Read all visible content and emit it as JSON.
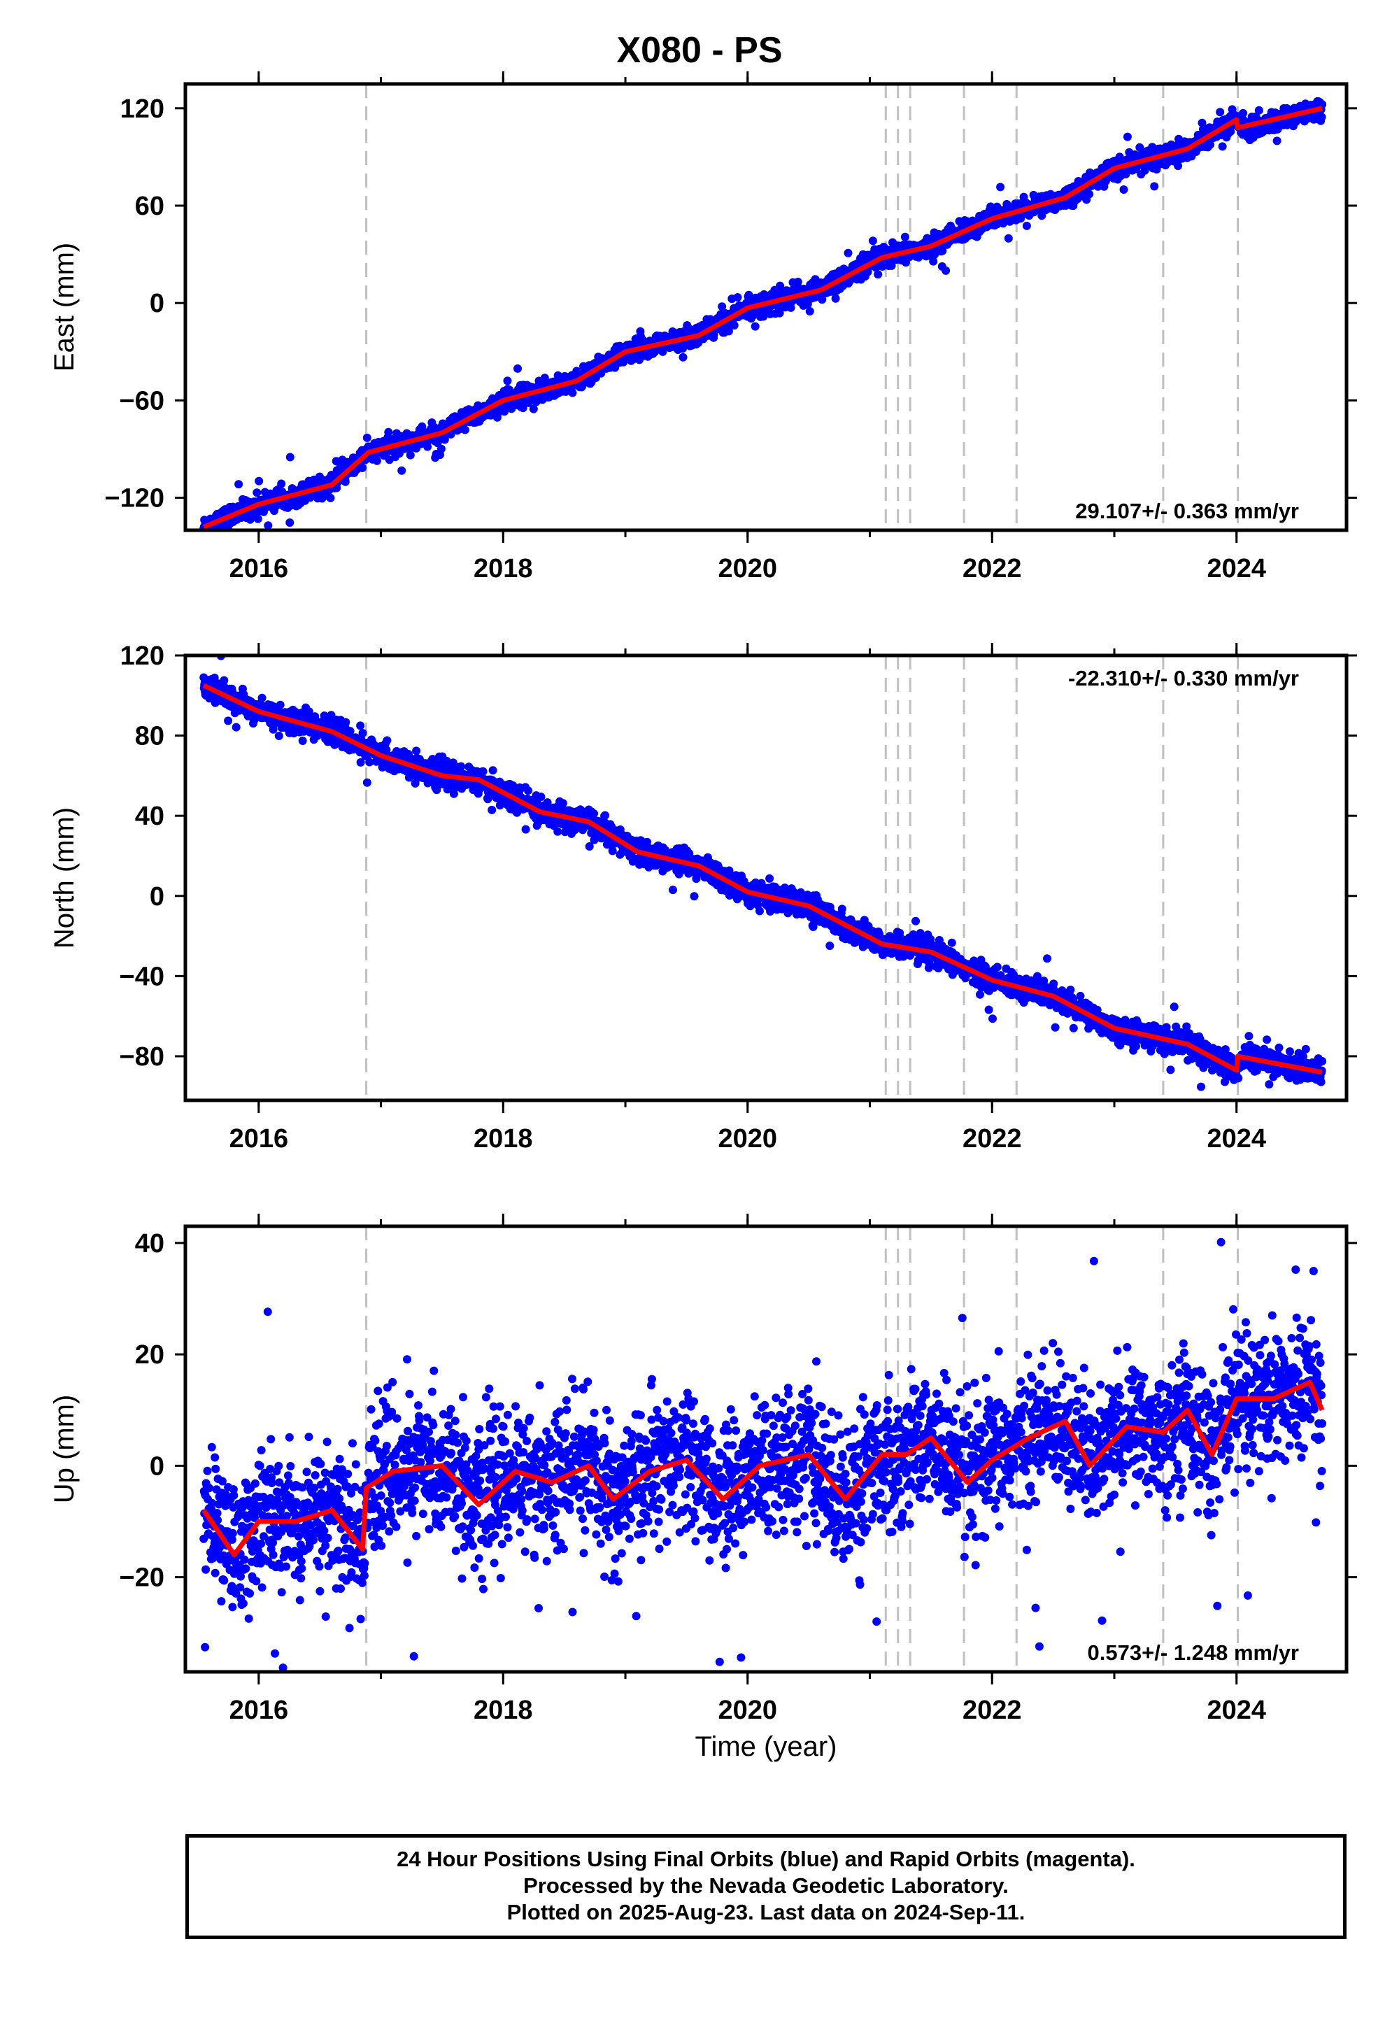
{
  "figure": {
    "title": "X080 - PS",
    "xlabel": "Time (year)",
    "footer": [
      "24 Hour Positions Using Final Orbits (blue) and Rapid Orbits (magenta).",
      "Processed by the Nevada Geodetic Laboratory.",
      "Plotted on 2025-Aug-23. Last data on 2024-Sep-11."
    ]
  },
  "colors": {
    "final_orbits": "#0000ff",
    "model_fit": "#ff0000",
    "event_lines": "#c0c0c0",
    "frame": "#000000"
  },
  "chart_data": [
    {
      "type": "scatter",
      "panel": "East",
      "ylabel": "East (mm)",
      "xlim": [
        2015.4,
        2024.9
      ],
      "ylim": [
        -140,
        135
      ],
      "yticks": [
        -120,
        -60,
        0,
        60,
        120
      ],
      "xticks": [
        2016,
        2018,
        2020,
        2022,
        2024
      ],
      "rate_label": "29.107+/- 0.363 mm/yr",
      "rate_label_position": "bottom-right",
      "series": [
        {
          "kind": "daily-positions",
          "color": "#0000ff",
          "x_range": [
            2015.55,
            2024.7
          ],
          "trend": [
            [
              2015.55,
              -138
            ],
            [
              2016.0,
              -124
            ],
            [
              2016.6,
              -112
            ],
            [
              2016.9,
              -92
            ],
            [
              2017.5,
              -80
            ],
            [
              2018.0,
              -60
            ],
            [
              2018.6,
              -48
            ],
            [
              2019.0,
              -30
            ],
            [
              2019.6,
              -20
            ],
            [
              2020.0,
              -3
            ],
            [
              2020.6,
              8
            ],
            [
              2021.1,
              28
            ],
            [
              2021.5,
              35
            ],
            [
              2022.0,
              52
            ],
            [
              2022.6,
              65
            ],
            [
              2023.0,
              83
            ],
            [
              2023.6,
              95
            ],
            [
              2024.0,
              113
            ],
            [
              2024.1,
              107
            ],
            [
              2024.7,
              120
            ]
          ],
          "scatter_mm": 3
        },
        {
          "kind": "model-fit",
          "color": "#ff0000",
          "points": [
            [
              2015.55,
              -138
            ],
            [
              2016.0,
              -124
            ],
            [
              2016.6,
              -112
            ],
            [
              2016.9,
              -92
            ],
            [
              2017.5,
              -80
            ],
            [
              2018.0,
              -60
            ],
            [
              2018.6,
              -48
            ],
            [
              2019.0,
              -30
            ],
            [
              2019.6,
              -20
            ],
            [
              2020.0,
              -3
            ],
            [
              2020.6,
              8
            ],
            [
              2021.1,
              28
            ],
            [
              2021.5,
              35
            ],
            [
              2022.0,
              52
            ],
            [
              2022.6,
              65
            ],
            [
              2023.0,
              83
            ],
            [
              2023.6,
              95
            ],
            [
              2024.0,
              113
            ],
            [
              2024.01,
              108
            ],
            [
              2024.7,
              120
            ]
          ]
        }
      ],
      "events": [
        2016.88,
        2021.13,
        2021.23,
        2021.33,
        2021.77,
        2022.2,
        2023.4,
        2024.01
      ]
    },
    {
      "type": "scatter",
      "panel": "North",
      "ylabel": "North (mm)",
      "xlim": [
        2015.4,
        2024.9
      ],
      "ylim": [
        -102,
        120
      ],
      "yticks": [
        -80,
        -40,
        0,
        40,
        80,
        120
      ],
      "xticks": [
        2016,
        2018,
        2020,
        2022,
        2024
      ],
      "rate_label": "-22.310+/- 0.330 mm/yr",
      "rate_label_position": "top-right",
      "series": [
        {
          "kind": "daily-positions",
          "color": "#0000ff",
          "x_range": [
            2015.55,
            2024.7
          ],
          "trend": [
            [
              2015.55,
              105
            ],
            [
              2016.0,
              92
            ],
            [
              2016.6,
              82
            ],
            [
              2017.0,
              70
            ],
            [
              2017.5,
              60
            ],
            [
              2017.8,
              58
            ],
            [
              2018.3,
              42
            ],
            [
              2018.7,
              37
            ],
            [
              2019.1,
              22
            ],
            [
              2019.6,
              15
            ],
            [
              2020.0,
              2
            ],
            [
              2020.5,
              -5
            ],
            [
              2021.1,
              -24
            ],
            [
              2021.5,
              -28
            ],
            [
              2022.0,
              -42
            ],
            [
              2022.5,
              -50
            ],
            [
              2023.0,
              -66
            ],
            [
              2023.6,
              -74
            ],
            [
              2024.0,
              -87
            ],
            [
              2024.05,
              -80
            ],
            [
              2024.7,
              -88
            ]
          ],
          "scatter_mm": 3
        },
        {
          "kind": "model-fit",
          "color": "#ff0000",
          "points": [
            [
              2015.55,
              105
            ],
            [
              2016.0,
              92
            ],
            [
              2016.6,
              82
            ],
            [
              2017.0,
              70
            ],
            [
              2017.5,
              60
            ],
            [
              2017.8,
              58
            ],
            [
              2018.3,
              42
            ],
            [
              2018.7,
              37
            ],
            [
              2019.1,
              22
            ],
            [
              2019.6,
              15
            ],
            [
              2020.0,
              2
            ],
            [
              2020.5,
              -5
            ],
            [
              2021.1,
              -24
            ],
            [
              2021.5,
              -28
            ],
            [
              2022.0,
              -42
            ],
            [
              2022.5,
              -50
            ],
            [
              2023.0,
              -66
            ],
            [
              2023.6,
              -74
            ],
            [
              2024.0,
              -87
            ],
            [
              2024.01,
              -80
            ],
            [
              2024.7,
              -88
            ]
          ]
        }
      ],
      "events": [
        2016.88,
        2021.13,
        2021.23,
        2021.33,
        2021.77,
        2022.2,
        2023.4,
        2024.01
      ]
    },
    {
      "type": "scatter",
      "panel": "Up",
      "ylabel": "Up (mm)",
      "xlim": [
        2015.4,
        2024.9
      ],
      "ylim": [
        -37,
        43
      ],
      "yticks": [
        -20,
        0,
        20,
        40
      ],
      "xticks": [
        2016,
        2018,
        2020,
        2022,
        2024
      ],
      "rate_label": "0.573+/- 1.248 mm/yr",
      "rate_label_position": "bottom-right",
      "series": [
        {
          "kind": "daily-positions",
          "color": "#0000ff",
          "x_range": [
            2015.55,
            2024.7
          ],
          "trend": [
            [
              2015.55,
              -8
            ],
            [
              2015.8,
              -16
            ],
            [
              2016.0,
              -10
            ],
            [
              2016.3,
              -10
            ],
            [
              2016.6,
              -8
            ],
            [
              2016.85,
              -15
            ],
            [
              2016.9,
              -4
            ],
            [
              2017.1,
              -1
            ],
            [
              2017.5,
              0
            ],
            [
              2017.8,
              -7
            ],
            [
              2018.1,
              -1
            ],
            [
              2018.4,
              -3
            ],
            [
              2018.7,
              0
            ],
            [
              2018.9,
              -6
            ],
            [
              2019.2,
              -1
            ],
            [
              2019.5,
              1
            ],
            [
              2019.8,
              -6
            ],
            [
              2020.1,
              0
            ],
            [
              2020.5,
              2
            ],
            [
              2020.8,
              -6
            ],
            [
              2021.1,
              2
            ],
            [
              2021.3,
              2
            ],
            [
              2021.5,
              5
            ],
            [
              2021.8,
              -3
            ],
            [
              2022.0,
              1
            ],
            [
              2022.3,
              5
            ],
            [
              2022.6,
              8
            ],
            [
              2022.8,
              0
            ],
            [
              2023.1,
              7
            ],
            [
              2023.4,
              6
            ],
            [
              2023.6,
              10
            ],
            [
              2023.8,
              2
            ],
            [
              2024.0,
              12
            ],
            [
              2024.3,
              12
            ],
            [
              2024.6,
              15
            ],
            [
              2024.7,
              10
            ]
          ],
          "scatter_mm": 6
        },
        {
          "kind": "model-fit",
          "color": "#ff0000",
          "points": [
            [
              2015.55,
              -8
            ],
            [
              2015.8,
              -16
            ],
            [
              2016.0,
              -10
            ],
            [
              2016.3,
              -10
            ],
            [
              2016.6,
              -8
            ],
            [
              2016.85,
              -15
            ],
            [
              2016.88,
              -4
            ],
            [
              2017.1,
              -1
            ],
            [
              2017.5,
              0
            ],
            [
              2017.8,
              -7
            ],
            [
              2018.1,
              -1
            ],
            [
              2018.4,
              -3
            ],
            [
              2018.7,
              0
            ],
            [
              2018.9,
              -6
            ],
            [
              2019.2,
              -1
            ],
            [
              2019.5,
              1
            ],
            [
              2019.8,
              -6
            ],
            [
              2020.1,
              0
            ],
            [
              2020.5,
              2
            ],
            [
              2020.8,
              -6
            ],
            [
              2021.1,
              2
            ],
            [
              2021.3,
              2
            ],
            [
              2021.5,
              5
            ],
            [
              2021.8,
              -3
            ],
            [
              2022.0,
              1
            ],
            [
              2022.3,
              5
            ],
            [
              2022.6,
              8
            ],
            [
              2022.8,
              0
            ],
            [
              2023.1,
              7
            ],
            [
              2023.4,
              6
            ],
            [
              2023.6,
              10
            ],
            [
              2023.8,
              2
            ],
            [
              2024.0,
              12
            ],
            [
              2024.3,
              12
            ],
            [
              2024.6,
              15
            ],
            [
              2024.7,
              10
            ]
          ]
        }
      ],
      "events": [
        2016.88,
        2021.13,
        2021.23,
        2021.33,
        2021.77,
        2022.2,
        2023.4,
        2024.01
      ]
    }
  ]
}
